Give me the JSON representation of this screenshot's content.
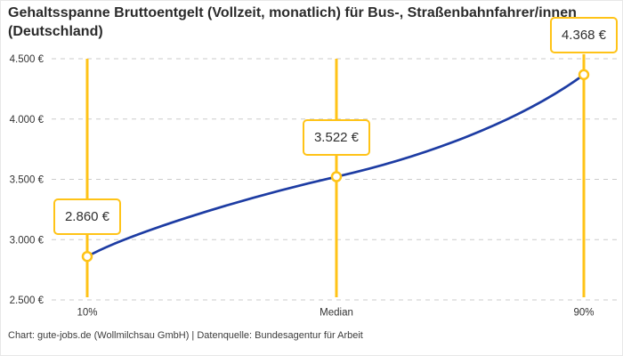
{
  "header": {
    "title": "Gehaltsspanne Bruttoentgelt (Vollzeit, monatlich) für Bus-, Straßenbahnfahrer/innen (Deutschland)"
  },
  "footer": {
    "credit": "Chart: gute-jobs.de (Wollmilchsau GmbH) | Datenquelle: Bundesagentur für Arbeit"
  },
  "chart_data": {
    "type": "line",
    "title": "Gehaltsspanne Bruttoentgelt (Vollzeit, monatlich) für Bus-, Straßenbahnfahrer/innen (Deutschland)",
    "categories": [
      "10%",
      "Median",
      "90%"
    ],
    "values": [
      2860,
      3522,
      4368
    ],
    "point_labels": [
      "2.860 €",
      "3.522 €",
      "4.368 €"
    ],
    "ylim": [
      2500,
      4500
    ],
    "yticks": [
      2500,
      3000,
      3500,
      4000,
      4500
    ],
    "ytick_labels": [
      "2.500 €",
      "3.000 €",
      "3.500 €",
      "4.000 €",
      "4.500 €"
    ],
    "xlabel": "",
    "ylabel": "",
    "grid": "horizontal-dashed",
    "legend": "none",
    "colors": {
      "line": "#1d3ca3",
      "accent": "#ffc317",
      "grid": "#cbcbcb",
      "text": "#333333"
    }
  }
}
